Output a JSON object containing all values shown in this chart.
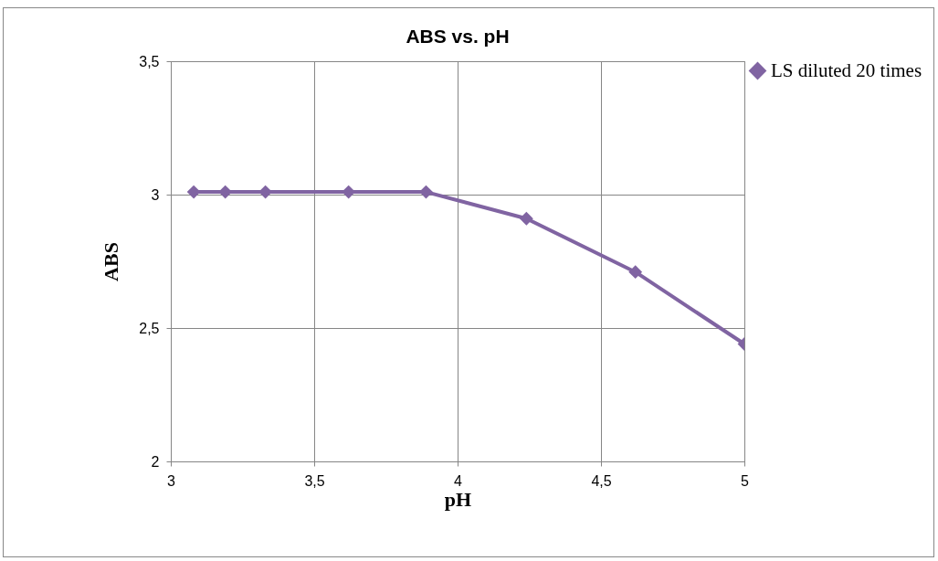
{
  "chart_data": {
    "type": "line",
    "title": "ABS vs. pH",
    "xlabel": "pH",
    "ylabel": "ABS",
    "x": [
      3.08,
      3.19,
      3.33,
      3.62,
      3.89,
      4.24,
      4.62,
      5
    ],
    "series": [
      {
        "name": "LS diluted 20 times",
        "color": "#8064a2",
        "values": [
          3.01,
          3.01,
          3.01,
          3.01,
          3.01,
          2.91,
          2.71,
          2.44
        ]
      }
    ],
    "xlim": [
      3,
      5
    ],
    "xticks": [
      {
        "value": 3,
        "label": "3"
      },
      {
        "value": 3.5,
        "label": "3,5"
      },
      {
        "value": 4,
        "label": "4"
      },
      {
        "value": 4.5,
        "label": "4,5"
      },
      {
        "value": 5,
        "label": "5"
      }
    ],
    "ylim": [
      2,
      3.5
    ],
    "yticks": [
      {
        "value": 2,
        "label": "2"
      },
      {
        "value": 2.5,
        "label": "2,5"
      },
      {
        "value": 3,
        "label": "3"
      },
      {
        "value": 3.5,
        "label": "3,5"
      }
    ],
    "grid": true,
    "legend": "right",
    "marker": "diamond",
    "line_style": "solid"
  }
}
